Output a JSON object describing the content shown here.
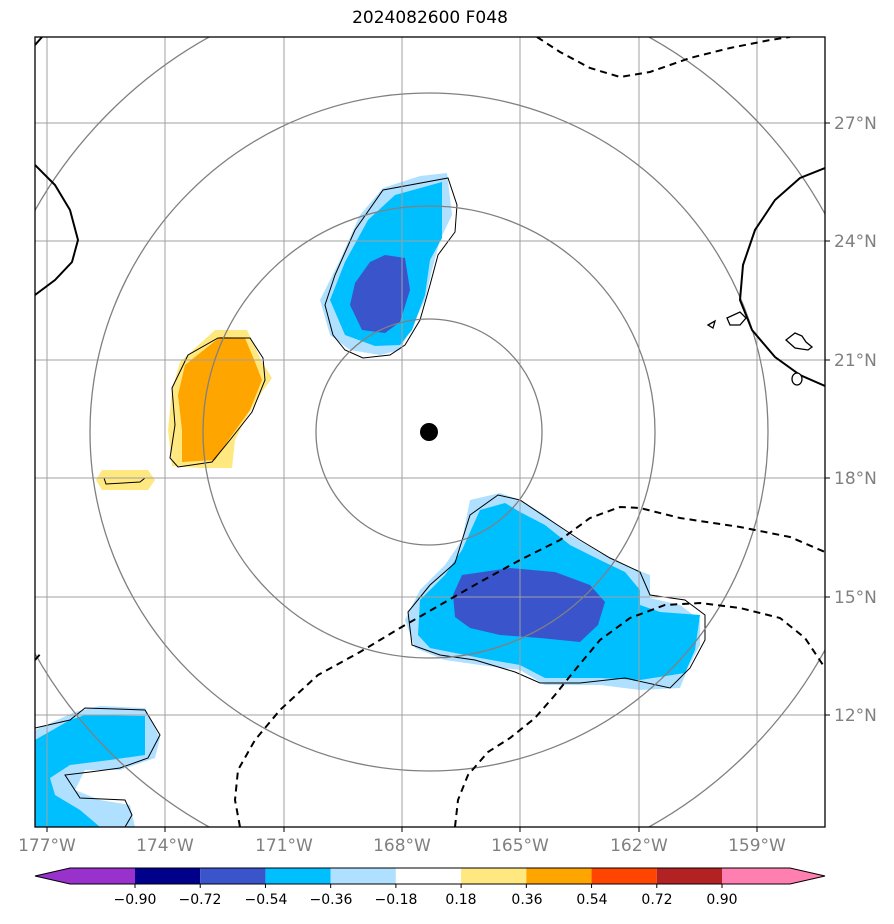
{
  "title": "2024082600 F048",
  "lon_labels": [
    "177°W",
    "174°W",
    "171°W",
    "168°W",
    "165°W",
    "162°W",
    "159°W"
  ],
  "lat_labels": [
    "27°N",
    "24°N",
    "21°N",
    "18°N",
    "15°N",
    "12°N"
  ],
  "center_marker": {
    "lon": -167.3,
    "lat": 19.2
  },
  "colorbar": {
    "levels": [
      "−0.90",
      "−0.72",
      "−0.54",
      "−0.36",
      "−0.18",
      "0.18",
      "0.36",
      "0.54",
      "0.72",
      "0.90"
    ],
    "colors": [
      "#9932CC",
      "#00008B",
      "#3A55CC",
      "#00BFFF",
      "#B0E0FF",
      "#FFFFFF",
      "#FFE880",
      "#FFA500",
      "#FF4500",
      "#B22222",
      "#FF80B0"
    ]
  },
  "shading_colors": {
    "light_blue": "#B0E0FF",
    "blue": "#00BFFF",
    "dark_blue": "#3A55CC",
    "light_yellow": "#FFE880",
    "orange": "#FFA500"
  }
}
